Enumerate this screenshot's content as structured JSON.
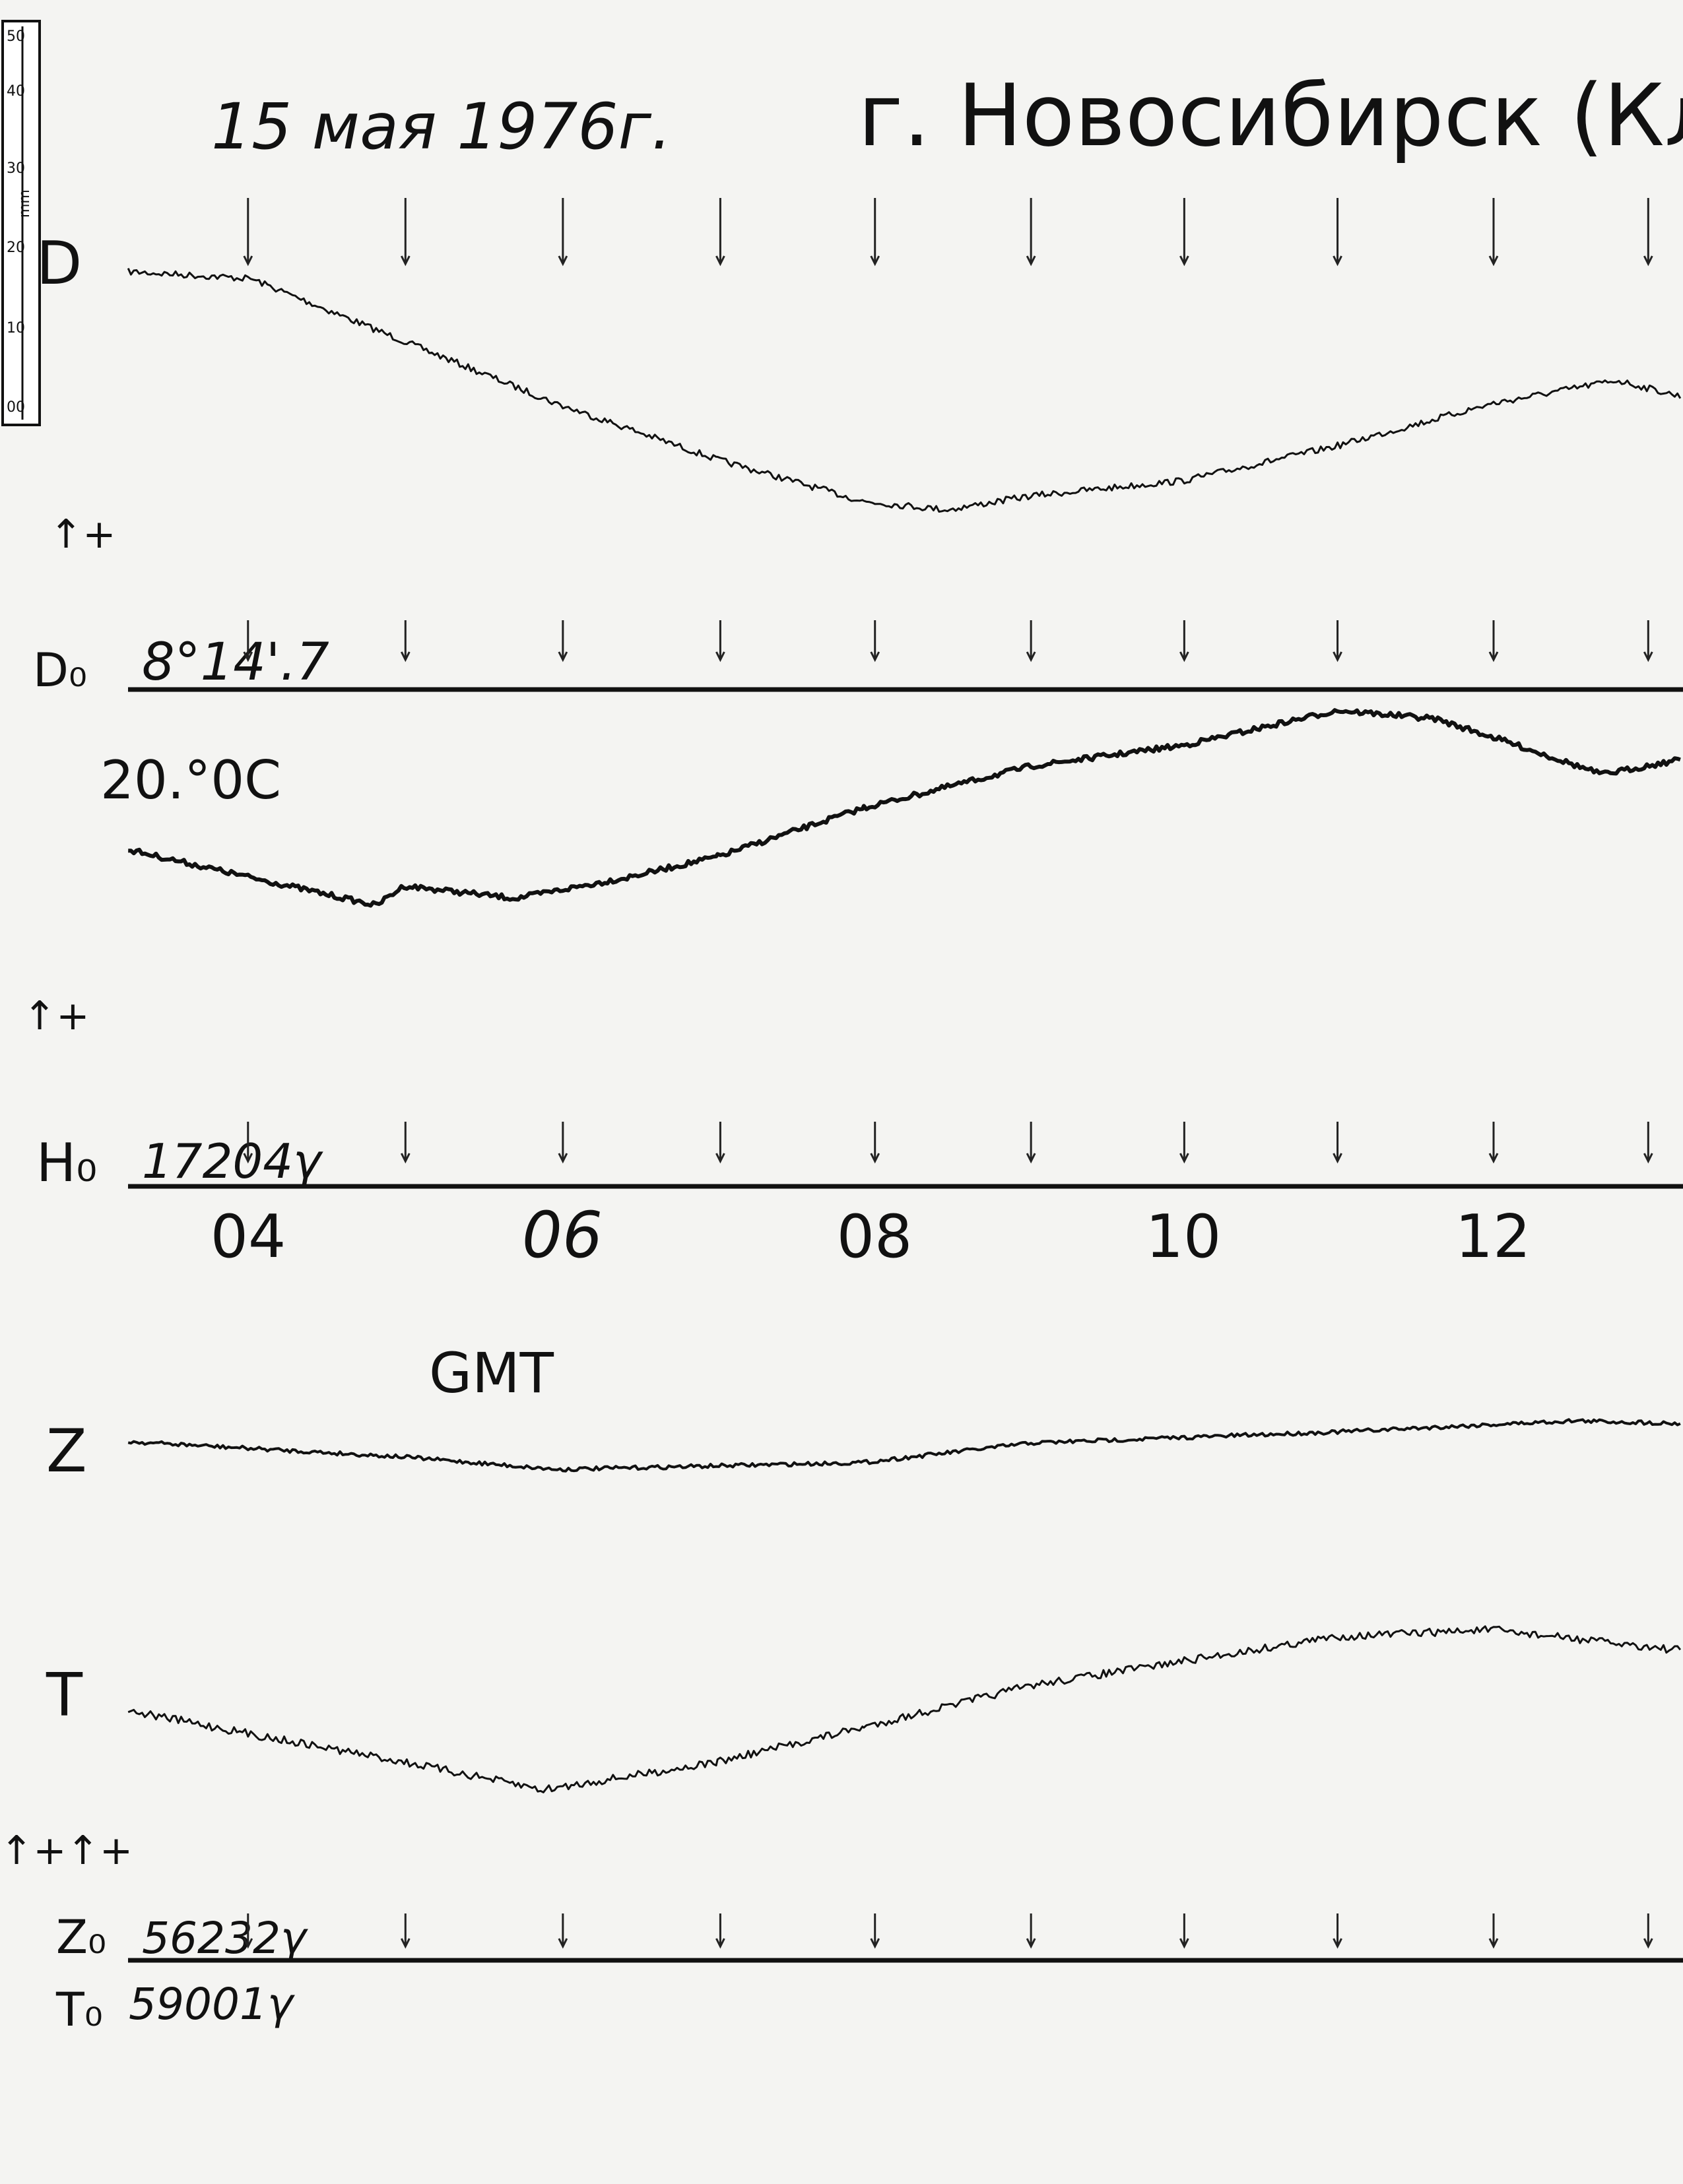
{
  "title": {
    "date": "15 мая 1976г.",
    "place": "г. Новосибирск (Ключи"
  },
  "scale": {
    "unit": "mm",
    "ticks": [
      "50",
      "40",
      "30",
      "20",
      "10",
      "00"
    ]
  },
  "traces": {
    "d": "D",
    "z": "Z",
    "t": "T"
  },
  "polarity": {
    "d": "↑+",
    "h": "↑+",
    "zt": "↑+↑+"
  },
  "temperature": "20.°0C",
  "baselines": [
    {
      "label": "D₀",
      "value": "8°14'.7"
    },
    {
      "label": "H₀",
      "value": "17204γ"
    },
    {
      "label": "Z₀",
      "value": "56232γ"
    },
    {
      "label": "T₀",
      "value": "59001γ"
    }
  ],
  "time_axis": {
    "labels": [
      "04",
      "06",
      "08",
      "10",
      "12"
    ],
    "unit": "GMT"
  }
}
